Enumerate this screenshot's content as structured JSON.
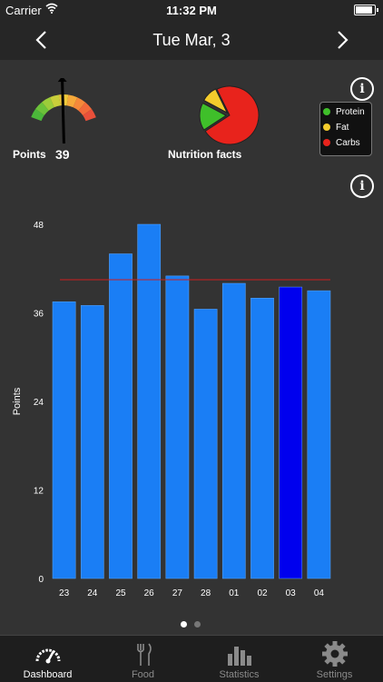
{
  "status": {
    "carrier": "Carrier",
    "time": "11:32 PM",
    "battery_level": 0.9
  },
  "nav": {
    "title": "Tue  Mar, 3"
  },
  "summary": {
    "points_label": "Points",
    "points_value": "39",
    "nutrition_label": "Nutrition facts"
  },
  "info_icon_glyph": "i",
  "legend": [
    {
      "label": "Protein",
      "color": "#3fbf2a"
    },
    {
      "label": "Fat",
      "color": "#f4cc2c"
    },
    {
      "label": "Carbs",
      "color": "#e8231c"
    }
  ],
  "nutrition_pie": [
    {
      "name": "Protein",
      "fraction": 0.17,
      "color": "#3fbf2a"
    },
    {
      "name": "Fat",
      "fraction": 0.1,
      "color": "#f4cc2c"
    },
    {
      "name": "Carbs",
      "fraction": 0.73,
      "color": "#e8231c"
    }
  ],
  "gauge": {
    "min": 0,
    "max": 80,
    "value": 39,
    "needle_icon": "arrow-up-icon"
  },
  "chart_data": {
    "type": "bar",
    "categories": [
      "23",
      "24",
      "25",
      "26",
      "27",
      "28",
      "01",
      "02",
      "03",
      "04"
    ],
    "values": [
      37.5,
      37,
      44,
      48,
      41,
      36.5,
      40,
      38,
      39.5,
      39
    ],
    "ylabel": "Points",
    "ylim": [
      0,
      48
    ],
    "yticks": [
      0,
      12,
      24,
      36,
      48
    ],
    "target_line": 40.5,
    "highlight_index": 8,
    "bar_color": "#1a7ef5",
    "highlight_color": "#0000ee",
    "target_color": "#cc1f1f"
  },
  "pager": {
    "pages": 2,
    "active": 0
  },
  "tabs": [
    {
      "label": "Dashboard",
      "icon": "dashboard-gauge-icon",
      "active": true
    },
    {
      "label": "Food",
      "icon": "fork-knife-icon",
      "active": false
    },
    {
      "label": "Statistics",
      "icon": "bar-chart-icon",
      "active": false
    },
    {
      "label": "Settings",
      "icon": "gear-icon",
      "active": false
    }
  ]
}
